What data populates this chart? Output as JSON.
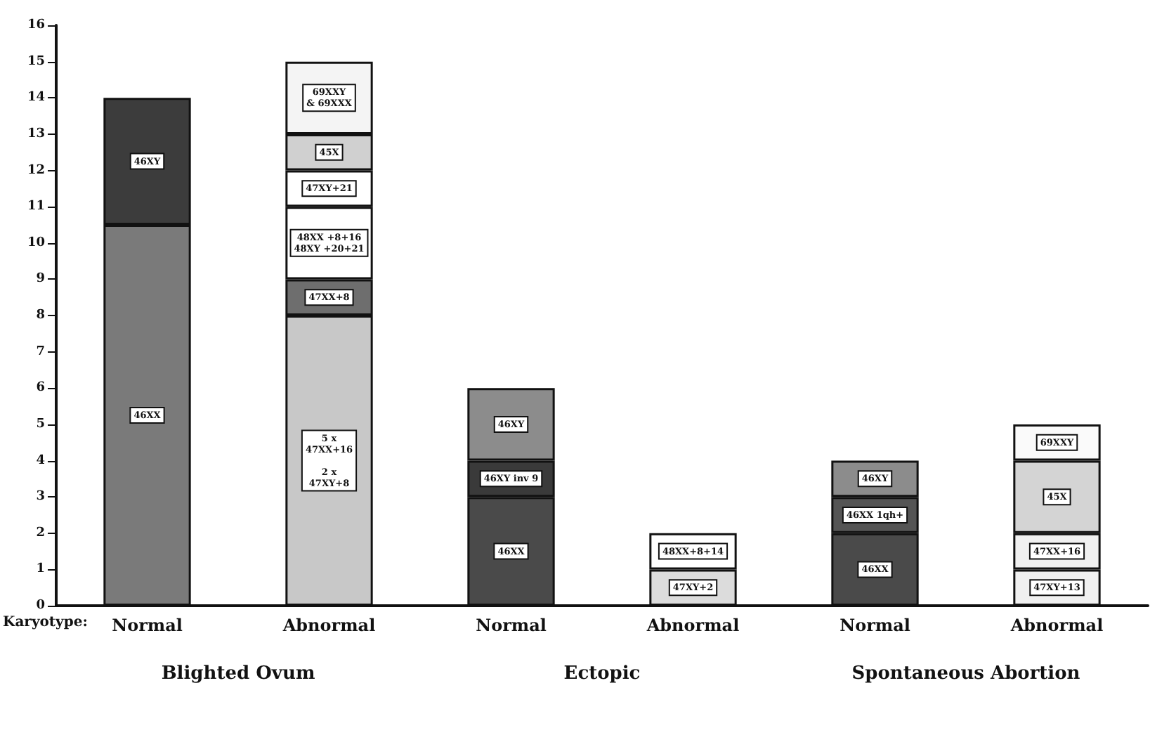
{
  "chart_data": {
    "type": "bar",
    "stacked": true,
    "legend": false,
    "grid": false,
    "categories": [
      "Normal",
      "Abnormal",
      "Normal",
      "Abnormal",
      "Normal",
      "Abnormal"
    ],
    "ylim": [
      0,
      16
    ],
    "yticks": [
      0,
      1,
      2,
      3,
      4,
      5,
      6,
      7,
      8,
      9,
      10,
      11,
      12,
      13,
      14,
      15,
      16
    ],
    "annotations": [
      "Karyotype:",
      "Blighted Ovum",
      "Ectopic",
      "Spontaneous Abortion"
    ],
    "series": [
      {
        "name": "46XX",
        "color": "#7a7a7a",
        "values": [
          10.5,
          null,
          null,
          null,
          null,
          null
        ]
      },
      {
        "name": "46XY",
        "color": "#3c3c3c",
        "values": [
          3.5,
          null,
          null,
          null,
          null,
          null
        ]
      },
      {
        "name": "5 x\n47XX+16\n\n2 x\n47XY+8",
        "color": "#c8c8c8",
        "values": [
          null,
          8,
          null,
          null,
          null,
          null
        ]
      },
      {
        "name": "47XX+8",
        "color": "#6e6e6e",
        "values": [
          null,
          1,
          null,
          null,
          null,
          null
        ]
      },
      {
        "name": "48XX +8+16\n48XY +20+21",
        "color": "#ffffff",
        "values": [
          null,
          2,
          null,
          null,
          null,
          null
        ]
      },
      {
        "name": "47XY+21",
        "color": "#ffffff",
        "values": [
          null,
          1,
          null,
          null,
          null,
          null
        ]
      },
      {
        "name": "45X",
        "color": "#d0d0d0",
        "values": [
          null,
          1,
          null,
          null,
          null,
          null
        ]
      },
      {
        "name": "69XXY\n& 69XXX",
        "color": "#f4f4f4",
        "values": [
          null,
          2,
          null,
          null,
          null,
          null
        ]
      },
      {
        "name": "46XX",
        "color": "#4a4a4a",
        "values": [
          null,
          null,
          3,
          null,
          null,
          null
        ]
      },
      {
        "name": "46XY inv 9",
        "color": "#3a3a3a",
        "values": [
          null,
          null,
          1,
          null,
          null,
          null
        ]
      },
      {
        "name": "46XY",
        "color": "#8c8c8c",
        "values": [
          null,
          null,
          2,
          null,
          null,
          null
        ]
      },
      {
        "name": "47XY+2",
        "color": "#dcdcdc",
        "values": [
          null,
          null,
          null,
          1,
          null,
          null
        ]
      },
      {
        "name": "48XX+8+14",
        "color": "#ffffff",
        "values": [
          null,
          null,
          null,
          1,
          null,
          null
        ]
      },
      {
        "name": "46XX",
        "color": "#4a4a4a",
        "values": [
          null,
          null,
          null,
          null,
          2,
          null
        ]
      },
      {
        "name": "46XX 1qh+",
        "color": "#555555",
        "values": [
          null,
          null,
          null,
          null,
          1,
          null
        ]
      },
      {
        "name": "46XY",
        "color": "#8c8c8c",
        "values": [
          null,
          null,
          null,
          null,
          1,
          null
        ]
      },
      {
        "name": "47XY+13",
        "color": "#f0f0f0",
        "values": [
          null,
          null,
          null,
          null,
          null,
          1
        ]
      },
      {
        "name": "47XX+16",
        "color": "#f0f0f0",
        "values": [
          null,
          null,
          null,
          null,
          null,
          1
        ]
      },
      {
        "name": "45X",
        "color": "#d4d4d4",
        "values": [
          null,
          null,
          null,
          null,
          null,
          2
        ]
      },
      {
        "name": "69XXY",
        "color": "#fafafa",
        "values": [
          null,
          null,
          null,
          null,
          null,
          1
        ]
      }
    ]
  }
}
